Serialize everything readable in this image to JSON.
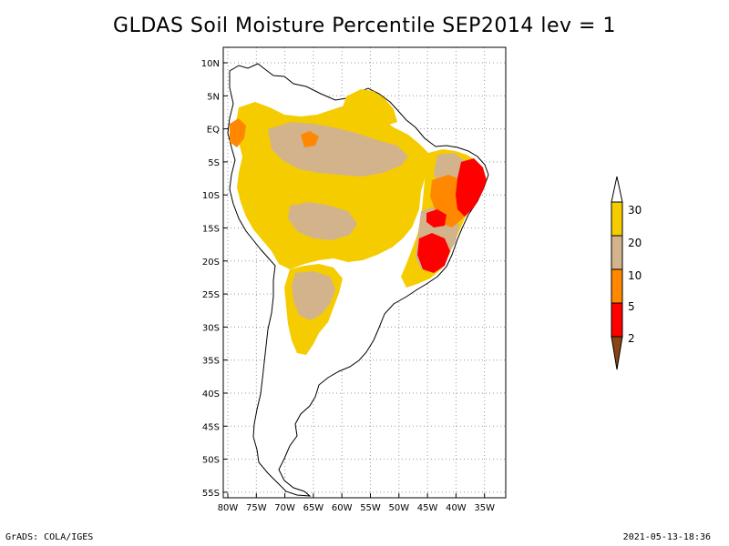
{
  "title": "GLDAS Soil Moisture Percentile SEP2014 lev = 1",
  "footer": {
    "left": "GrADS: COLA/IGES",
    "right": "2021-05-13-18:36"
  },
  "map": {
    "region": "South America",
    "lon_range": [
      -80,
      -30
    ],
    "lat_range": [
      -56,
      12
    ],
    "lat_ticks": [
      "10N",
      "5N",
      "EQ",
      "5S",
      "10S",
      "15S",
      "20S",
      "25S",
      "30S",
      "35S",
      "40S",
      "45S",
      "50S",
      "55S"
    ],
    "lon_ticks": [
      "80W",
      "75W",
      "70W",
      "65W",
      "60W",
      "55W",
      "50W",
      "45W",
      "40W",
      "35W"
    ],
    "grid": true
  },
  "legend": {
    "labels": [
      "30",
      "20",
      "10",
      "5",
      "2"
    ],
    "colors": {
      "above_30": "#ffffff",
      "20_30": "#f5cc00",
      "10_20": "#d2b38c",
      "5_10": "#ff8800",
      "2_5": "#ff0000",
      "below_2": "#8b4513"
    }
  }
}
